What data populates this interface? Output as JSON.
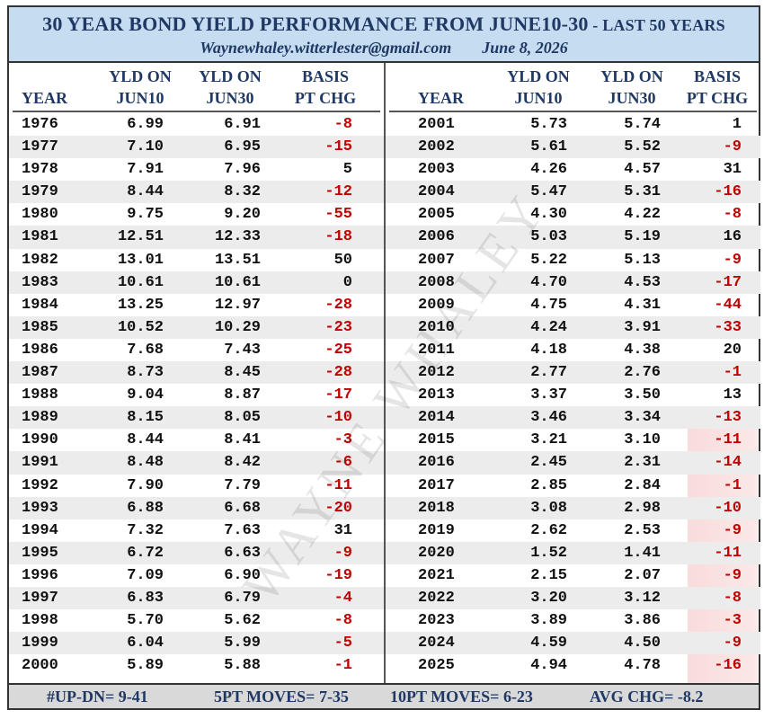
{
  "header": {
    "title": "30 YEAR BOND YIELD PERFORMANCE FROM  JUNE10-30",
    "title_suffix": " -  LAST 50 YEARS",
    "email": "Waynewhaley.witterlester@gmail.com",
    "date": "June 8, 2026"
  },
  "columns": {
    "year": "YEAR",
    "yld10_line1": "YLD ON",
    "yld10_line2": "JUN10",
    "yld30_line1": "YLD ON",
    "yld30_line2": "JUN30",
    "chg_line1": "BASIS",
    "chg_line2": "PT CHG"
  },
  "left_rows": [
    {
      "year": "1976",
      "jun10": "6.99",
      "jun30": "6.91",
      "chg": "-8"
    },
    {
      "year": "1977",
      "jun10": "7.10",
      "jun30": "6.95",
      "chg": "-15"
    },
    {
      "year": "1978",
      "jun10": "7.91",
      "jun30": "7.96",
      "chg": "5"
    },
    {
      "year": "1979",
      "jun10": "8.44",
      "jun30": "8.32",
      "chg": "-12"
    },
    {
      "year": "1980",
      "jun10": "9.75",
      "jun30": "9.20",
      "chg": "-55"
    },
    {
      "year": "1981",
      "jun10": "12.51",
      "jun30": "12.33",
      "chg": "-18"
    },
    {
      "year": "1982",
      "jun10": "13.01",
      "jun30": "13.51",
      "chg": "50"
    },
    {
      "year": "1983",
      "jun10": "10.61",
      "jun30": "10.61",
      "chg": "0"
    },
    {
      "year": "1984",
      "jun10": "13.25",
      "jun30": "12.97",
      "chg": "-28"
    },
    {
      "year": "1985",
      "jun10": "10.52",
      "jun30": "10.29",
      "chg": "-23"
    },
    {
      "year": "1986",
      "jun10": "7.68",
      "jun30": "7.43",
      "chg": "-25"
    },
    {
      "year": "1987",
      "jun10": "8.73",
      "jun30": "8.45",
      "chg": "-28"
    },
    {
      "year": "1988",
      "jun10": "9.04",
      "jun30": "8.87",
      "chg": "-17"
    },
    {
      "year": "1989",
      "jun10": "8.15",
      "jun30": "8.05",
      "chg": "-10"
    },
    {
      "year": "1990",
      "jun10": "8.44",
      "jun30": "8.41",
      "chg": "-3"
    },
    {
      "year": "1991",
      "jun10": "8.48",
      "jun30": "8.42",
      "chg": "-6"
    },
    {
      "year": "1992",
      "jun10": "7.90",
      "jun30": "7.79",
      "chg": "-11"
    },
    {
      "year": "1993",
      "jun10": "6.88",
      "jun30": "6.68",
      "chg": "-20"
    },
    {
      "year": "1994",
      "jun10": "7.32",
      "jun30": "7.63",
      "chg": "31"
    },
    {
      "year": "1995",
      "jun10": "6.72",
      "jun30": "6.63",
      "chg": "-9"
    },
    {
      "year": "1996",
      "jun10": "7.09",
      "jun30": "6.90",
      "chg": "-19"
    },
    {
      "year": "1997",
      "jun10": "6.83",
      "jun30": "6.79",
      "chg": "-4"
    },
    {
      "year": "1998",
      "jun10": "5.70",
      "jun30": "5.62",
      "chg": "-8"
    },
    {
      "year": "1999",
      "jun10": "6.04",
      "jun30": "5.99",
      "chg": "-5"
    },
    {
      "year": "2000",
      "jun10": "5.89",
      "jun30": "5.88",
      "chg": "-1"
    }
  ],
  "right_rows": [
    {
      "year": "2001",
      "jun10": "5.73",
      "jun30": "5.74",
      "chg": "1"
    },
    {
      "year": "2002",
      "jun10": "5.61",
      "jun30": "5.52",
      "chg": "-9"
    },
    {
      "year": "2003",
      "jun10": "4.26",
      "jun30": "4.57",
      "chg": "31"
    },
    {
      "year": "2004",
      "jun10": "5.47",
      "jun30": "5.31",
      "chg": "-16"
    },
    {
      "year": "2005",
      "jun10": "4.30",
      "jun30": "4.22",
      "chg": "-8"
    },
    {
      "year": "2006",
      "jun10": "5.03",
      "jun30": "5.19",
      "chg": "16"
    },
    {
      "year": "2007",
      "jun10": "5.22",
      "jun30": "5.13",
      "chg": "-9"
    },
    {
      "year": "2008",
      "jun10": "4.70",
      "jun30": "4.53",
      "chg": "-17"
    },
    {
      "year": "2009",
      "jun10": "4.75",
      "jun30": "4.31",
      "chg": "-44"
    },
    {
      "year": "2010",
      "jun10": "4.24",
      "jun30": "3.91",
      "chg": "-33"
    },
    {
      "year": "2011",
      "jun10": "4.18",
      "jun30": "4.38",
      "chg": "20"
    },
    {
      "year": "2012",
      "jun10": "2.77",
      "jun30": "2.76",
      "chg": "-1"
    },
    {
      "year": "2013",
      "jun10": "3.37",
      "jun30": "3.50",
      "chg": "13"
    },
    {
      "year": "2014",
      "jun10": "3.46",
      "jun30": "3.34",
      "chg": "-13"
    },
    {
      "year": "2015",
      "jun10": "3.21",
      "jun30": "3.10",
      "chg": "-11"
    },
    {
      "year": "2016",
      "jun10": "2.45",
      "jun30": "2.31",
      "chg": "-14"
    },
    {
      "year": "2017",
      "jun10": "2.85",
      "jun30": "2.84",
      "chg": "-1"
    },
    {
      "year": "2018",
      "jun10": "3.08",
      "jun30": "2.98",
      "chg": "-10"
    },
    {
      "year": "2019",
      "jun10": "2.62",
      "jun30": "2.53",
      "chg": "-9"
    },
    {
      "year": "2020",
      "jun10": "1.52",
      "jun30": "1.41",
      "chg": "-11"
    },
    {
      "year": "2021",
      "jun10": "2.15",
      "jun30": "2.07",
      "chg": "-9"
    },
    {
      "year": "2022",
      "jun10": "3.20",
      "jun30": "3.12",
      "chg": "-8"
    },
    {
      "year": "2023",
      "jun10": "3.89",
      "jun30": "3.86",
      "chg": "-3"
    },
    {
      "year": "2024",
      "jun10": "4.59",
      "jun30": "4.50",
      "chg": "-9"
    },
    {
      "year": "2025",
      "jun10": "4.94",
      "jun30": "4.78",
      "chg": "-16"
    }
  ],
  "footer": {
    "up_dn": "#UP-DN=  9-41",
    "five_pt": "5PT MOVES= 7-35",
    "ten_pt": "10PT MOVES= 6-23",
    "avg": "AVG CHG= -8.2"
  },
  "watermark": "WAYNE WHALEY",
  "colors": {
    "title_band": "#c6dcf0",
    "title_text": "#1f3864",
    "negative": "#c00000",
    "shade": "#ececec",
    "footer_band": "#d9d9d9",
    "highlight": "#f4bebe"
  }
}
